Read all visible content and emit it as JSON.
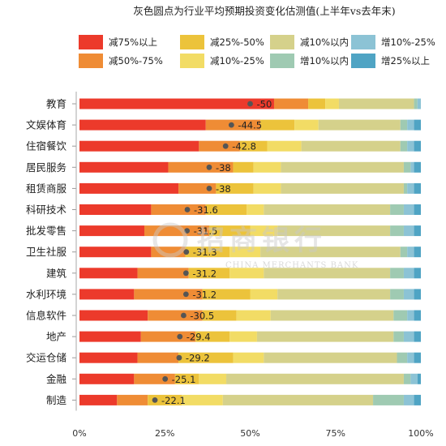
{
  "chart_data": {
    "type": "bar",
    "orientation": "horizontal",
    "stacked": true,
    "title": "灰色圆点为行业平均预期投资变化估测值(上半年vs去年末)",
    "xlim": [
      0,
      100
    ],
    "x_ticks": [
      "0%",
      "25%",
      "50%",
      "75%",
      "100%"
    ],
    "grid": false,
    "legend_position": "top",
    "categories": [
      "教育",
      "文娱体育",
      "住宿餐饮",
      "居民服务",
      "租赁商服",
      "科研技术",
      "批发零售",
      "卫生社服",
      "建筑",
      "水利环境",
      "信息软件",
      "地产",
      "交运仓储",
      "金融",
      "制造"
    ],
    "series": [
      {
        "name": "减75%以上",
        "color": "#ec3a2b",
        "values": [
          57,
          37,
          35,
          26,
          29,
          21,
          19,
          21,
          17,
          16,
          20,
          18,
          17,
          16,
          11
        ]
      },
      {
        "name": "减50%-75%",
        "color": "#ef8c35",
        "values": [
          10,
          16,
          12,
          19,
          11,
          16,
          19,
          10,
          15,
          20,
          16,
          16,
          12,
          12,
          9
        ]
      },
      {
        "name": "减25%-50%",
        "color": "#ecc33b",
        "values": [
          5,
          10,
          8,
          6,
          11,
          12,
          12,
          13,
          12,
          14,
          10,
          10,
          16,
          7,
          10
        ]
      },
      {
        "name": "减10%-25%",
        "color": "#f2dc65",
        "values": [
          4,
          7,
          10,
          8,
          8,
          5,
          8,
          9,
          10,
          8,
          10,
          8,
          9,
          8,
          12
        ]
      },
      {
        "name": "减10%以内",
        "color": "#d5d18b",
        "values": [
          22,
          24,
          29,
          36,
          36,
          37,
          33,
          41,
          37,
          33,
          36,
          40,
          39,
          52,
          44
        ]
      },
      {
        "name": "增10%以内",
        "color": "#9fcab2",
        "values": [
          1,
          2,
          2,
          2,
          1,
          4,
          4,
          2,
          4,
          4,
          4,
          3,
          3,
          2,
          9
        ]
      },
      {
        "name": "增10%-25%",
        "color": "#8cc3d5",
        "values": [
          1,
          2,
          2,
          1,
          2,
          3,
          3,
          2,
          3,
          3,
          2,
          3,
          2,
          2,
          3
        ]
      },
      {
        "name": "增25%以上",
        "color": "#4fa4c4",
        "values": [
          0,
          2,
          2,
          2,
          2,
          2,
          2,
          2,
          2,
          2,
          2,
          2,
          2,
          1,
          2
        ]
      }
    ],
    "average_markers": {
      "color": "#555555",
      "values": [
        -50,
        -44.5,
        -42.8,
        -38,
        -38,
        -31.6,
        -31.5,
        -31.3,
        -31.2,
        -31.2,
        -30.5,
        -29.4,
        -29.2,
        -25.1,
        -22.1
      ],
      "labels": [
        "-50",
        "-44.5",
        "-42.8",
        "-38",
        "-38",
        "-31.6",
        "-31.5",
        "-31.3",
        "-31.2",
        "-31.2",
        "-30.5",
        "-29.4",
        "-29.2",
        "-25.1",
        "-22.1"
      ]
    },
    "watermark": {
      "text": "招商银行",
      "subtext": "CHINA MERCHANTS BANK"
    }
  }
}
